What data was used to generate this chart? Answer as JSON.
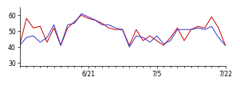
{
  "red_y": [
    41,
    58,
    52,
    53,
    43,
    52,
    41,
    52,
    56,
    60,
    58,
    57,
    55,
    52,
    51,
    51,
    41,
    51,
    44,
    47,
    44,
    41,
    46,
    52,
    44,
    51,
    53,
    52,
    59,
    52,
    41
  ],
  "blue_y": [
    41,
    46,
    47,
    43,
    46,
    54,
    41,
    54,
    55,
    61,
    59,
    57,
    54,
    54,
    52,
    51,
    40,
    47,
    46,
    43,
    47,
    42,
    44,
    51,
    51,
    51,
    52,
    51,
    53,
    46,
    41
  ],
  "x_ticks_pos": [
    10,
    20,
    30
  ],
  "x_tick_labels": [
    "6/21",
    "7/5",
    "7/22"
  ],
  "y_ticks": [
    30,
    40,
    50,
    60
  ],
  "ylim": [
    28,
    65
  ],
  "xlim": [
    0,
    30
  ],
  "red_color": "#cc0000",
  "blue_color": "#3333cc",
  "bg_color": "#ffffff",
  "linewidth": 0.7,
  "n_points": 31
}
